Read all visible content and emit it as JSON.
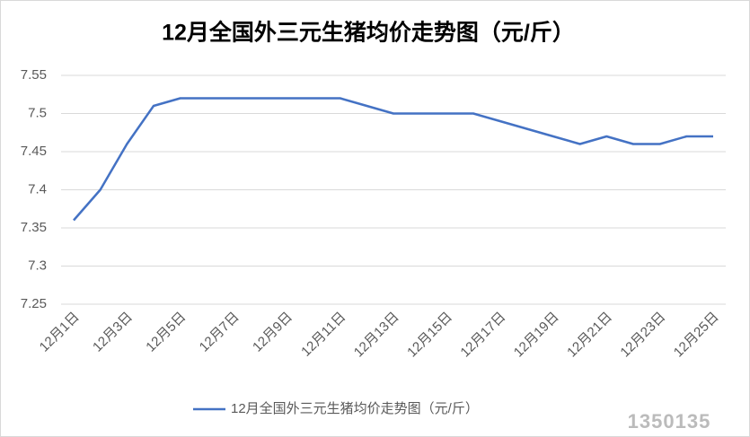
{
  "chart_data": {
    "type": "line",
    "title": "12月全国外三元生猪均价走势图（元/斤）",
    "categories": [
      "12月1日",
      null,
      "12月3日",
      null,
      "12月5日",
      null,
      "12月7日",
      null,
      "12月9日",
      null,
      "12月11日",
      null,
      "12月13日",
      null,
      "12月15日",
      null,
      "12月17日",
      null,
      "12月19日",
      null,
      "12月21日",
      null,
      "12月23日",
      null,
      "12月25日"
    ],
    "series": [
      {
        "name": "12月全国外三元生猪均价走势图（元/斤）",
        "color": "#4472c4",
        "values": [
          7.36,
          7.4,
          7.46,
          7.51,
          7.52,
          7.52,
          7.52,
          7.52,
          7.52,
          7.52,
          7.52,
          7.51,
          7.5,
          7.5,
          7.5,
          7.5,
          7.49,
          7.48,
          7.47,
          7.46,
          7.47,
          7.46,
          7.46,
          7.47,
          7.47
        ]
      }
    ],
    "ylim": [
      7.25,
      7.55
    ],
    "yticks": [
      7.25,
      7.3,
      7.35,
      7.4,
      7.45,
      7.5,
      7.55
    ],
    "grid": true,
    "legend": "bottom",
    "watermark": "1350135"
  }
}
